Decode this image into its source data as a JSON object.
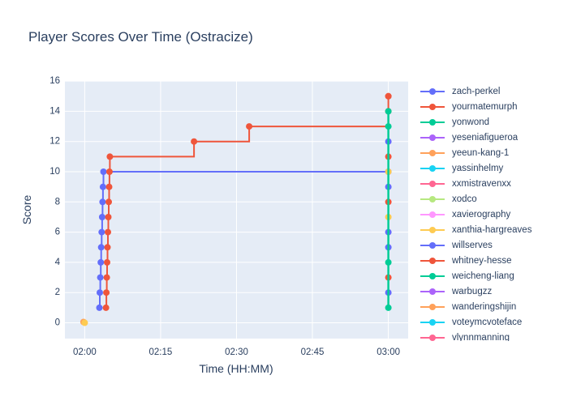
{
  "title": "Player Scores Over Time (Ostracize)",
  "chart_data": {
    "type": "line",
    "line_shape": "hv",
    "title": "Player Scores Over Time (Ostracize)",
    "xlabel": "Time (HH:MM)",
    "ylabel": "Score",
    "x_tick_labels": [
      "02:00",
      "02:15",
      "02:30",
      "02:45",
      "03:00"
    ],
    "x_tick_minutes": [
      0,
      15,
      30,
      45,
      60
    ],
    "y_ticks": [
      0,
      2,
      4,
      6,
      8,
      10,
      12,
      14,
      16
    ],
    "x_range_minutes": [
      -3.9,
      63.9
    ],
    "y_range": [
      -1.05,
      16.05
    ],
    "grid": true,
    "grid_color": "#FFFFFF",
    "plot_bg": "#E5ECF6",
    "paper_bg": "#FFFFFF",
    "text_color": "#2a3f5f",
    "legend_position": "right",
    "series": [
      {
        "name": "zach-perkel",
        "color": "#636EFA",
        "points": [
          [
            2.9,
            1
          ],
          [
            2.99,
            2
          ],
          [
            3.08,
            3
          ],
          [
            3.17,
            4
          ],
          [
            3.26,
            5
          ],
          [
            3.35,
            6
          ],
          [
            3.44,
            7
          ],
          [
            3.53,
            8
          ],
          [
            3.61,
            9
          ],
          [
            3.7,
            10
          ],
          [
            60,
            10
          ]
        ]
      },
      {
        "name": "yourmatemurph",
        "color": "#EF553B",
        "points": [
          [
            4.2,
            1
          ],
          [
            4.28,
            2
          ],
          [
            4.36,
            3
          ],
          [
            4.43,
            4
          ],
          [
            4.51,
            5
          ],
          [
            4.58,
            6
          ],
          [
            4.66,
            7
          ],
          [
            4.74,
            8
          ],
          [
            4.82,
            9
          ],
          [
            4.89,
            10
          ],
          [
            4.97,
            11
          ],
          [
            21.6,
            12
          ],
          [
            32.5,
            13
          ],
          [
            60,
            14
          ],
          [
            60,
            15
          ]
        ]
      },
      {
        "name": "yonwond",
        "color": "#00CC96",
        "points": [
          [
            60,
            1
          ],
          [
            60,
            2
          ],
          [
            60,
            3
          ],
          [
            60,
            4
          ],
          [
            60,
            5
          ],
          [
            60,
            6
          ],
          [
            60,
            7
          ],
          [
            60,
            8
          ],
          [
            60,
            9
          ],
          [
            60,
            10
          ],
          [
            60,
            11
          ],
          [
            60,
            12
          ],
          [
            60,
            13
          ],
          [
            60,
            14
          ]
        ]
      }
    ],
    "end_markers_at_0300": [
      {
        "score": 1,
        "color": "#00CC96"
      },
      {
        "score": 2,
        "color": "#636EFA"
      },
      {
        "score": 3,
        "color": "#EF553B"
      },
      {
        "score": 4,
        "color": "#00CC96"
      },
      {
        "score": 5,
        "color": "#636EFA"
      },
      {
        "score": 6,
        "color": "#636EFA"
      },
      {
        "score": 7,
        "color": "#FECB52"
      },
      {
        "score": 8,
        "color": "#EF553B"
      },
      {
        "score": 9,
        "color": "#636EFA"
      },
      {
        "score": 10,
        "color": "#FECB52"
      },
      {
        "score": 11,
        "color": "#EF553B"
      },
      {
        "score": 12,
        "color": "#636EFA"
      },
      {
        "score": 13,
        "color": "#00CC96"
      },
      {
        "score": 14,
        "color": "#00CC96"
      },
      {
        "score": 15,
        "color": "#EF553B"
      }
    ],
    "start_markers_at_0200": [
      {
        "minute": 0,
        "score": 0,
        "color": "#FFA15A"
      },
      {
        "minute": 0,
        "score": 0,
        "color": "#FECB52"
      }
    ]
  },
  "legend": {
    "items": [
      {
        "label": "zach-perkel",
        "color": "#636EFA"
      },
      {
        "label": "yourmatemurph",
        "color": "#EF553B"
      },
      {
        "label": "yonwond",
        "color": "#00CC96"
      },
      {
        "label": "yeseniafigueroa",
        "color": "#AB63FA"
      },
      {
        "label": "yeeun-kang-1",
        "color": "#FFA15A"
      },
      {
        "label": "yassinhelmy",
        "color": "#19D3F3"
      },
      {
        "label": "xxmistravenxx",
        "color": "#FF6692"
      },
      {
        "label": "xodco",
        "color": "#B6E880"
      },
      {
        "label": "xavierography",
        "color": "#FF97FF"
      },
      {
        "label": "xanthia-hargreaves",
        "color": "#FECB52"
      },
      {
        "label": "willserves",
        "color": "#636EFA"
      },
      {
        "label": "whitney-hesse",
        "color": "#EF553B"
      },
      {
        "label": "weicheng-liang",
        "color": "#00CC96"
      },
      {
        "label": "warbugzz",
        "color": "#AB63FA"
      },
      {
        "label": "wanderingshijin",
        "color": "#FFA15A"
      },
      {
        "label": "voteymcvoteface",
        "color": "#19D3F3"
      },
      {
        "label": "vlynnmanning",
        "color": "#FF6692"
      }
    ]
  },
  "colors": {
    "text": "#2a3f5f",
    "plot_bg": "#E5ECF6",
    "grid": "#FFFFFF",
    "paper_bg": "#FFFFFF"
  }
}
